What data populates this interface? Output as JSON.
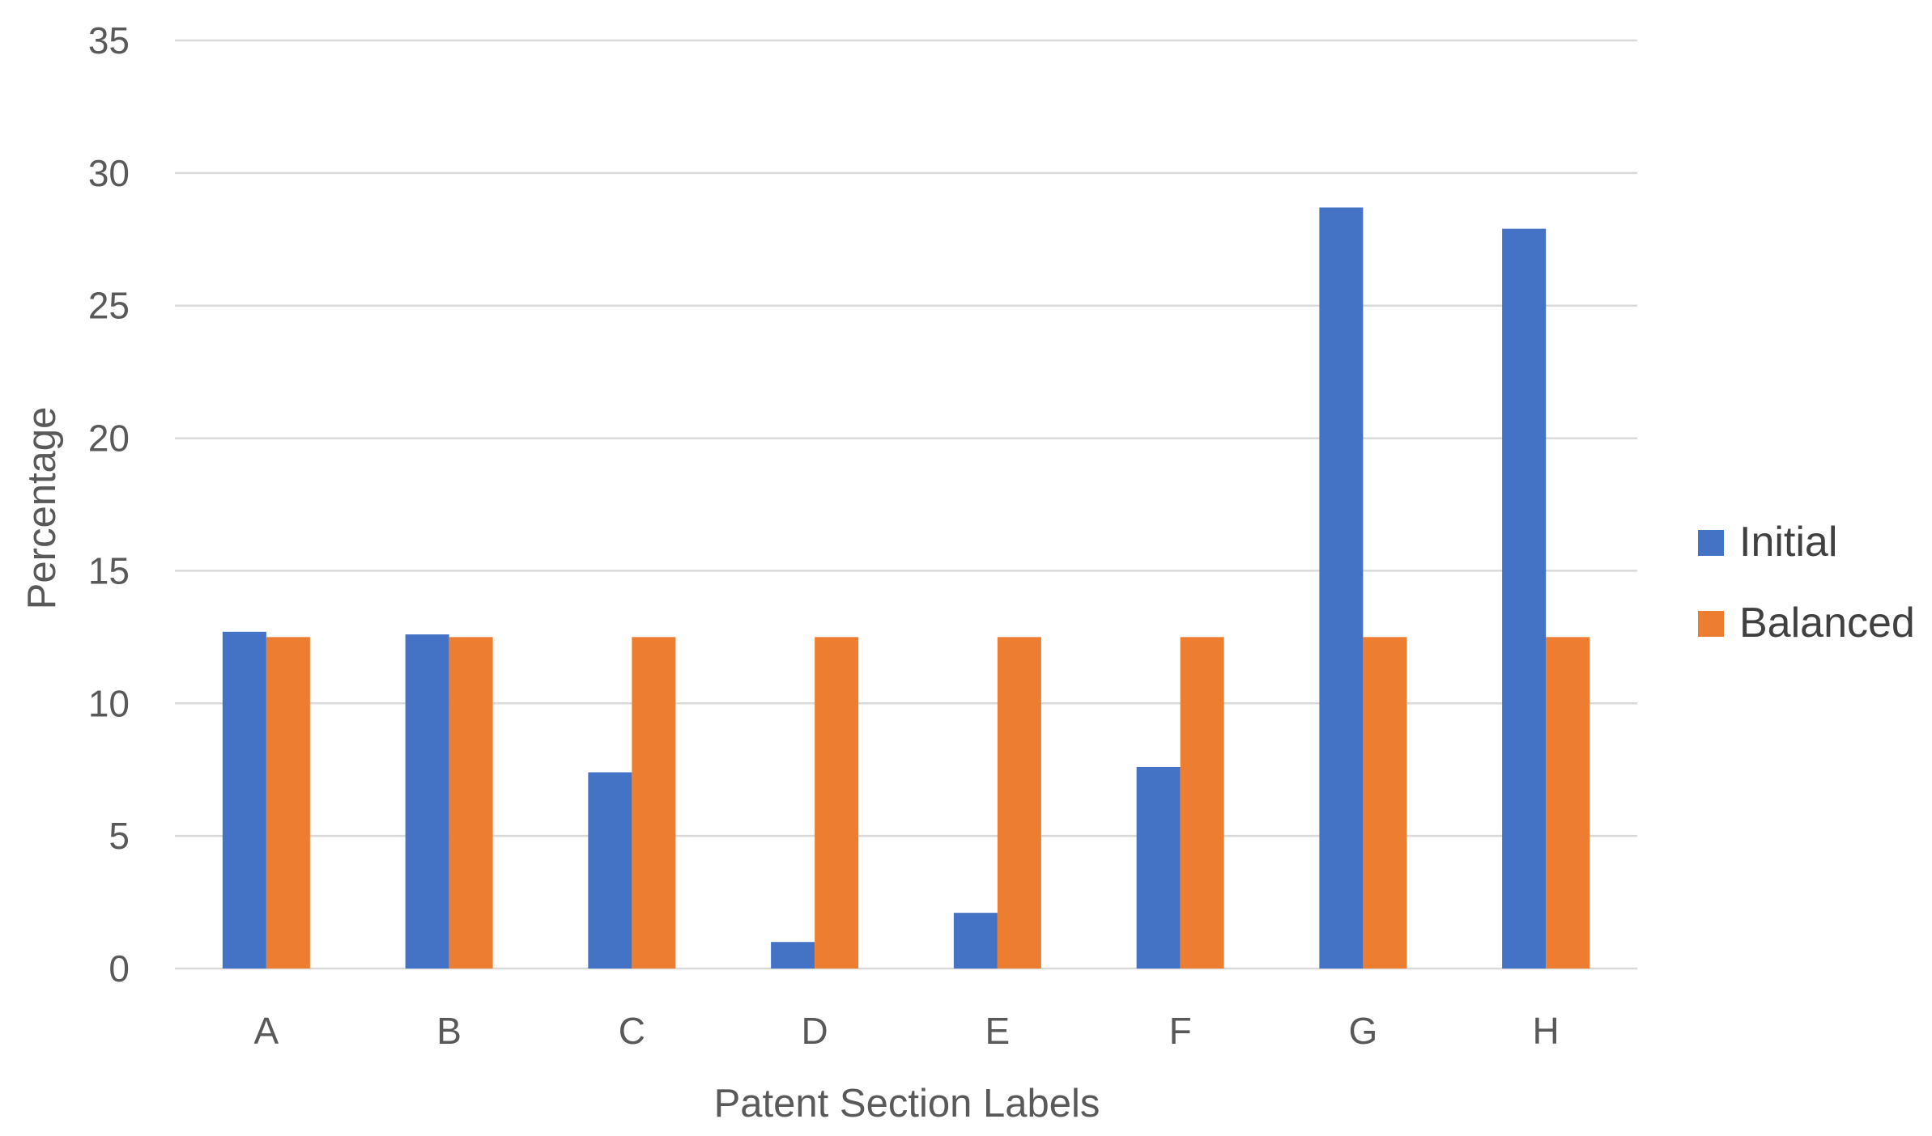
{
  "chart_data": {
    "type": "bar",
    "title": "",
    "xlabel": "Patent Section Labels",
    "ylabel": "Percentage",
    "categories": [
      "A",
      "B",
      "C",
      "D",
      "E",
      "F",
      "G",
      "H"
    ],
    "series": [
      {
        "name": "Initial",
        "color": "#4472c4",
        "values": [
          12.7,
          12.6,
          7.4,
          1.0,
          2.1,
          7.6,
          28.7,
          27.9
        ]
      },
      {
        "name": "Balanced",
        "color": "#ed7d31",
        "values": [
          12.5,
          12.5,
          12.5,
          12.5,
          12.5,
          12.5,
          12.5,
          12.5
        ]
      }
    ],
    "ylim": [
      0,
      35
    ],
    "yticks": [
      0,
      5,
      10,
      15,
      20,
      25,
      30,
      35
    ],
    "grid": true,
    "legend_position": "right"
  }
}
